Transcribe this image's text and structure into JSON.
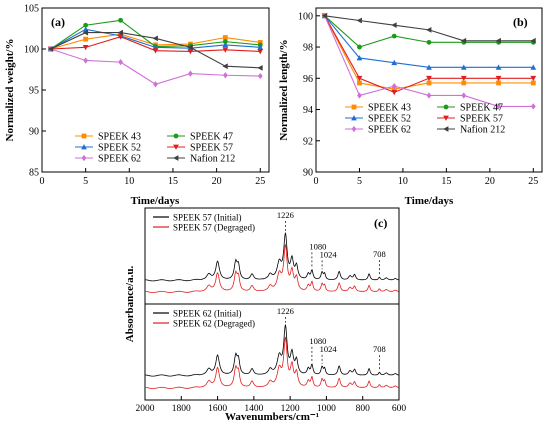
{
  "chart_data": [
    {
      "panel_label": "(a)",
      "type": "line",
      "xlabel": "Time/days",
      "ylabel": "Normalized weight/%",
      "xlim": [
        0,
        26
      ],
      "ylim": [
        85,
        105
      ],
      "xticks": [
        0,
        5,
        10,
        15,
        20,
        25
      ],
      "yticks": [
        85,
        90,
        95,
        100,
        105
      ],
      "legend": "bottom-center",
      "grid": false,
      "series": [
        {
          "name": "SPEEK 43",
          "color": "#ff8c00",
          "marker": "square",
          "x": [
            1,
            5,
            9,
            13,
            17,
            21,
            25
          ],
          "y": [
            100,
            101.2,
            101.8,
            100.5,
            100.6,
            101.4,
            100.8
          ]
        },
        {
          "name": "SPEEK 47",
          "color": "#1a9b1a",
          "marker": "circle",
          "x": [
            1,
            5,
            9,
            13,
            17,
            21,
            25
          ],
          "y": [
            100,
            102.9,
            103.5,
            100.3,
            100.4,
            100.9,
            100.5
          ]
        },
        {
          "name": "SPEEK 52",
          "color": "#1e6fd0",
          "marker": "triangle-up",
          "x": [
            1,
            5,
            9,
            13,
            17,
            21,
            25
          ],
          "y": [
            100,
            102.4,
            101.6,
            100.2,
            100.1,
            100.5,
            100.2
          ]
        },
        {
          "name": "SPEEK 57",
          "color": "#e02020",
          "marker": "triangle-down",
          "x": [
            1,
            5,
            9,
            13,
            17,
            21,
            25
          ],
          "y": [
            100,
            100.2,
            101.5,
            99.8,
            99.7,
            99.9,
            99.7
          ]
        },
        {
          "name": "SPEEK 62",
          "color": "#d070d8",
          "marker": "diamond",
          "x": [
            1,
            5,
            9,
            13,
            17,
            21,
            25
          ],
          "y": [
            100,
            98.6,
            98.4,
            95.7,
            97,
            96.8,
            96.7
          ]
        },
        {
          "name": "Nafion 212",
          "color": "#404040",
          "marker": "triangle-left",
          "x": [
            1,
            5,
            9,
            13,
            17,
            21,
            25
          ],
          "y": [
            100,
            102,
            102,
            101.3,
            100.2,
            97.9,
            97.7
          ]
        }
      ]
    },
    {
      "panel_label": "(b)",
      "type": "line",
      "xlabel": "Time/days",
      "ylabel": "Normalized length/%",
      "xlim": [
        0,
        26
      ],
      "ylim": [
        90,
        100.5
      ],
      "xticks": [
        0,
        5,
        10,
        15,
        20,
        25
      ],
      "yticks": [
        90,
        92,
        94,
        96,
        98,
        100
      ],
      "legend": "bottom-center",
      "grid": false,
      "series": [
        {
          "name": "SPEEK 43",
          "color": "#ff8c00",
          "marker": "square",
          "x": [
            1,
            5,
            9,
            13,
            17,
            21,
            25
          ],
          "y": [
            100,
            95.7,
            95.3,
            95.7,
            95.7,
            95.7,
            95.7
          ]
        },
        {
          "name": "SPEEK 47",
          "color": "#1a9b1a",
          "marker": "circle",
          "x": [
            1,
            5,
            9,
            13,
            17,
            21,
            25
          ],
          "y": [
            100,
            98,
            98.7,
            98.3,
            98.3,
            98.3,
            98.3
          ]
        },
        {
          "name": "SPEEK 52",
          "color": "#1e6fd0",
          "marker": "triangle-up",
          "x": [
            1,
            5,
            9,
            13,
            17,
            21,
            25
          ],
          "y": [
            100,
            97.3,
            97,
            96.7,
            96.7,
            96.7,
            96.7
          ]
        },
        {
          "name": "SPEEK 57",
          "color": "#e02020",
          "marker": "triangle-down",
          "x": [
            1,
            5,
            9,
            13,
            17,
            21,
            25
          ],
          "y": [
            100,
            96,
            95.1,
            96,
            96,
            96,
            96
          ]
        },
        {
          "name": "SPEEK 62",
          "color": "#d070d8",
          "marker": "diamond",
          "x": [
            1,
            5,
            9,
            13,
            17,
            21,
            25
          ],
          "y": [
            100,
            94.9,
            95.5,
            94.9,
            94.9,
            94.2,
            94.2
          ]
        },
        {
          "name": "Nafion 212",
          "color": "#404040",
          "marker": "triangle-left",
          "x": [
            1,
            5,
            9,
            13,
            17,
            21,
            25
          ],
          "y": [
            100,
            99.7,
            99.4,
            99.1,
            98.4,
            98.4,
            98.4
          ]
        }
      ]
    },
    {
      "panel_label": "(c)",
      "type": "line",
      "xlabel": "Wavenumbers/cm⁻¹",
      "ylabel": "Absorbance/a.u.",
      "xlim": [
        2000,
        600
      ],
      "x_reversed": true,
      "xticks": [
        2000,
        1800,
        1600,
        1400,
        1200,
        1000,
        800,
        600
      ],
      "legend": "top-left of each sub-panel",
      "grid": false,
      "peaks": [
        {
          "x": 1600,
          "h": 0.32,
          "w": 12
        },
        {
          "x": 1648,
          "h": 0.1,
          "w": 14
        },
        {
          "x": 1500,
          "h": 0.3,
          "w": 10
        },
        {
          "x": 1485,
          "h": 0.22,
          "w": 8
        },
        {
          "x": 1410,
          "h": 0.1,
          "w": 10
        },
        {
          "x": 1310,
          "h": 0.09,
          "w": 12
        },
        {
          "x": 1260,
          "h": 0.28,
          "w": 14
        },
        {
          "x": 1226,
          "h": 0.75,
          "w": 11
        },
        {
          "x": 1190,
          "h": 0.32,
          "w": 10
        },
        {
          "x": 1165,
          "h": 0.22,
          "w": 9
        },
        {
          "x": 1100,
          "h": 0.1,
          "w": 8
        },
        {
          "x": 1080,
          "h": 0.16,
          "w": 7
        },
        {
          "x": 1024,
          "h": 0.13,
          "w": 7
        },
        {
          "x": 1010,
          "h": 0.1,
          "w": 6
        },
        {
          "x": 930,
          "h": 0.15,
          "w": 8
        },
        {
          "x": 870,
          "h": 0.07,
          "w": 10
        },
        {
          "x": 845,
          "h": 0.09,
          "w": 8
        },
        {
          "x": 765,
          "h": 0.11,
          "w": 7
        },
        {
          "x": 708,
          "h": 0.05,
          "w": 6
        },
        {
          "x": 670,
          "h": 0.04,
          "w": 10
        },
        {
          "x": 620,
          "h": 0.03,
          "w": 10
        }
      ],
      "subpanels": [
        {
          "annotations": [
            "1226",
            "1080",
            "1024",
            "708"
          ],
          "annotation_x": [
            1226,
            1080,
            1024,
            708
          ],
          "series": [
            {
              "name": "SPEEK 57 (Initial)",
              "color": "#000000",
              "offset": 0.2
            },
            {
              "name": "SPEEK 57 (Degraged)",
              "color": "#e02020",
              "offset": 0
            }
          ]
        },
        {
          "annotations": [
            "1226",
            "1080",
            "1024",
            "708"
          ],
          "annotation_x": [
            1226,
            1080,
            1024,
            708
          ],
          "series": [
            {
              "name": "SPEEK 62 (Initial)",
              "color": "#000000",
              "offset": 0.2
            },
            {
              "name": "SPEEK 62 (Degraged)",
              "color": "#e02020",
              "offset": 0
            }
          ]
        }
      ]
    }
  ]
}
